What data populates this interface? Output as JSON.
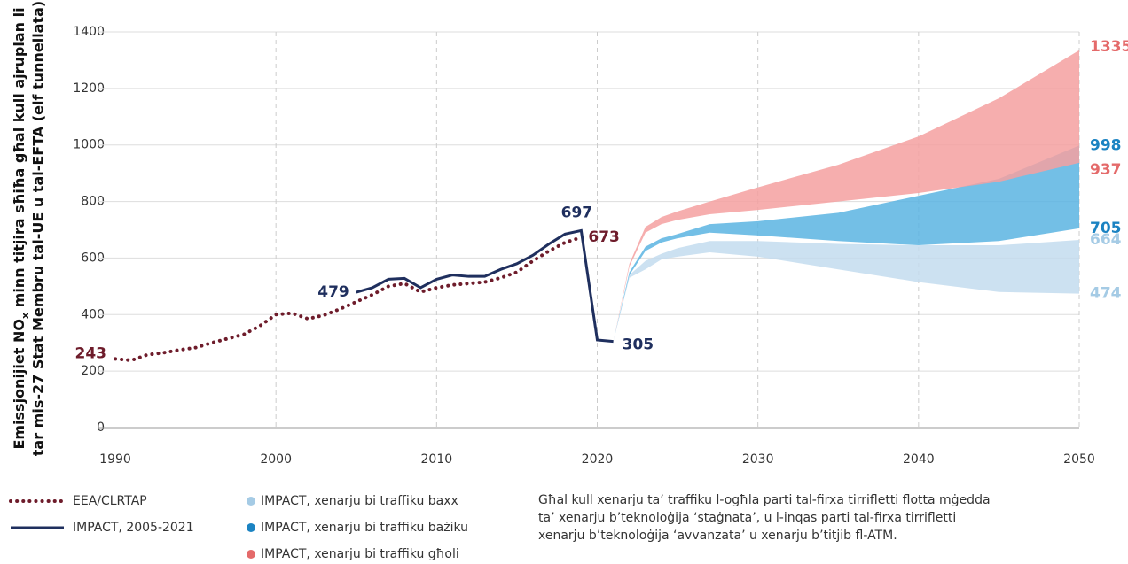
{
  "chart_data": {
    "type": "line",
    "ylabel": {
      "line1": [
        "Emissjonijiet NO",
        "x",
        " minn titjira sħiħa għal kull ajruplan li"
      ],
      "line2": "tar mis-27 Stat Membru tal-UE u tal-EFTA (elf tunnellata)"
    },
    "xlim": [
      1990,
      2050
    ],
    "xticks": [
      1990,
      2000,
      2010,
      2020,
      2030,
      2040,
      2050
    ],
    "ylim": [
      0,
      1400
    ],
    "yticks": [
      0,
      200,
      400,
      600,
      800,
      1000,
      1200,
      1400
    ],
    "grid": true,
    "series": [
      {
        "name": "EEA/CLRTAP",
        "color": "#6e1c2b",
        "style": "dotted",
        "x": [
          1990,
          1991,
          1992,
          1993,
          1994,
          1995,
          1996,
          1997,
          1998,
          1999,
          2000,
          2001,
          2002,
          2003,
          2004,
          2005,
          2006,
          2007,
          2008,
          2009,
          2010,
          2011,
          2012,
          2013,
          2014,
          2015,
          2016,
          2017,
          2018,
          2019
        ],
        "values": [
          243,
          238,
          258,
          265,
          275,
          283,
          300,
          315,
          330,
          360,
          400,
          405,
          385,
          398,
          420,
          445,
          470,
          500,
          510,
          480,
          495,
          505,
          510,
          515,
          530,
          550,
          590,
          625,
          655,
          673
        ]
      },
      {
        "name": "IMPACT, 2005-2021",
        "color": "#1f2f5e",
        "style": "solid",
        "x": [
          2005,
          2006,
          2007,
          2008,
          2009,
          2010,
          2011,
          2012,
          2013,
          2014,
          2015,
          2016,
          2017,
          2018,
          2019,
          2020,
          2021
        ],
        "values": [
          479,
          495,
          525,
          528,
          495,
          525,
          540,
          535,
          535,
          560,
          580,
          610,
          650,
          685,
          697,
          310,
          305
        ]
      },
      {
        "name": "IMPACT, xenarju bi traffiku baxx",
        "color": "#c3dcee",
        "label_color": "#a5cbe5",
        "style": "band",
        "x": [
          2021,
          2022,
          2023,
          2024,
          2025,
          2027,
          2030,
          2035,
          2040,
          2045,
          2050
        ],
        "lower": [
          305,
          530,
          560,
          595,
          605,
          620,
          605,
          560,
          515,
          480,
          474
        ],
        "upper": [
          305,
          540,
          590,
          615,
          635,
          660,
          660,
          650,
          645,
          645,
          664
        ]
      },
      {
        "name": "IMPACT, xenarju bi traffiku bażiku",
        "color": "#5ab4e2",
        "label_color": "#1b83c2",
        "style": "band",
        "x": [
          2021,
          2022,
          2023,
          2024,
          2025,
          2027,
          2030,
          2035,
          2040,
          2045,
          2050
        ],
        "lower": [
          305,
          540,
          625,
          655,
          670,
          690,
          680,
          660,
          645,
          660,
          705
        ],
        "upper": [
          305,
          550,
          640,
          670,
          685,
          720,
          730,
          760,
          820,
          880,
          998
        ]
      },
      {
        "name": "IMPACT, xenarju bi traffiku għoli",
        "color": "#f4a0a0",
        "label_color": "#e46a6a",
        "style": "band",
        "x": [
          2021,
          2022,
          2023,
          2024,
          2025,
          2027,
          2030,
          2035,
          2040,
          2045,
          2050
        ],
        "lower": [
          305,
          570,
          690,
          720,
          735,
          755,
          770,
          800,
          830,
          870,
          937
        ],
        "upper": [
          305,
          580,
          710,
          745,
          765,
          800,
          850,
          930,
          1030,
          1165,
          1335
        ]
      }
    ],
    "note": [
      "Għal kull xenarju ta’ traffiku l-ogħla parti tal-firxa tirrifletti flotta mġedda",
      "ta’ xenarju b’teknoloġija ‘staġnata’, u l-inqas parti tal-firxa tirrifletti",
      "xenarju b’teknoloġija ‘avvanzata’ u xenarju b’titjib fl-ATM."
    ]
  }
}
